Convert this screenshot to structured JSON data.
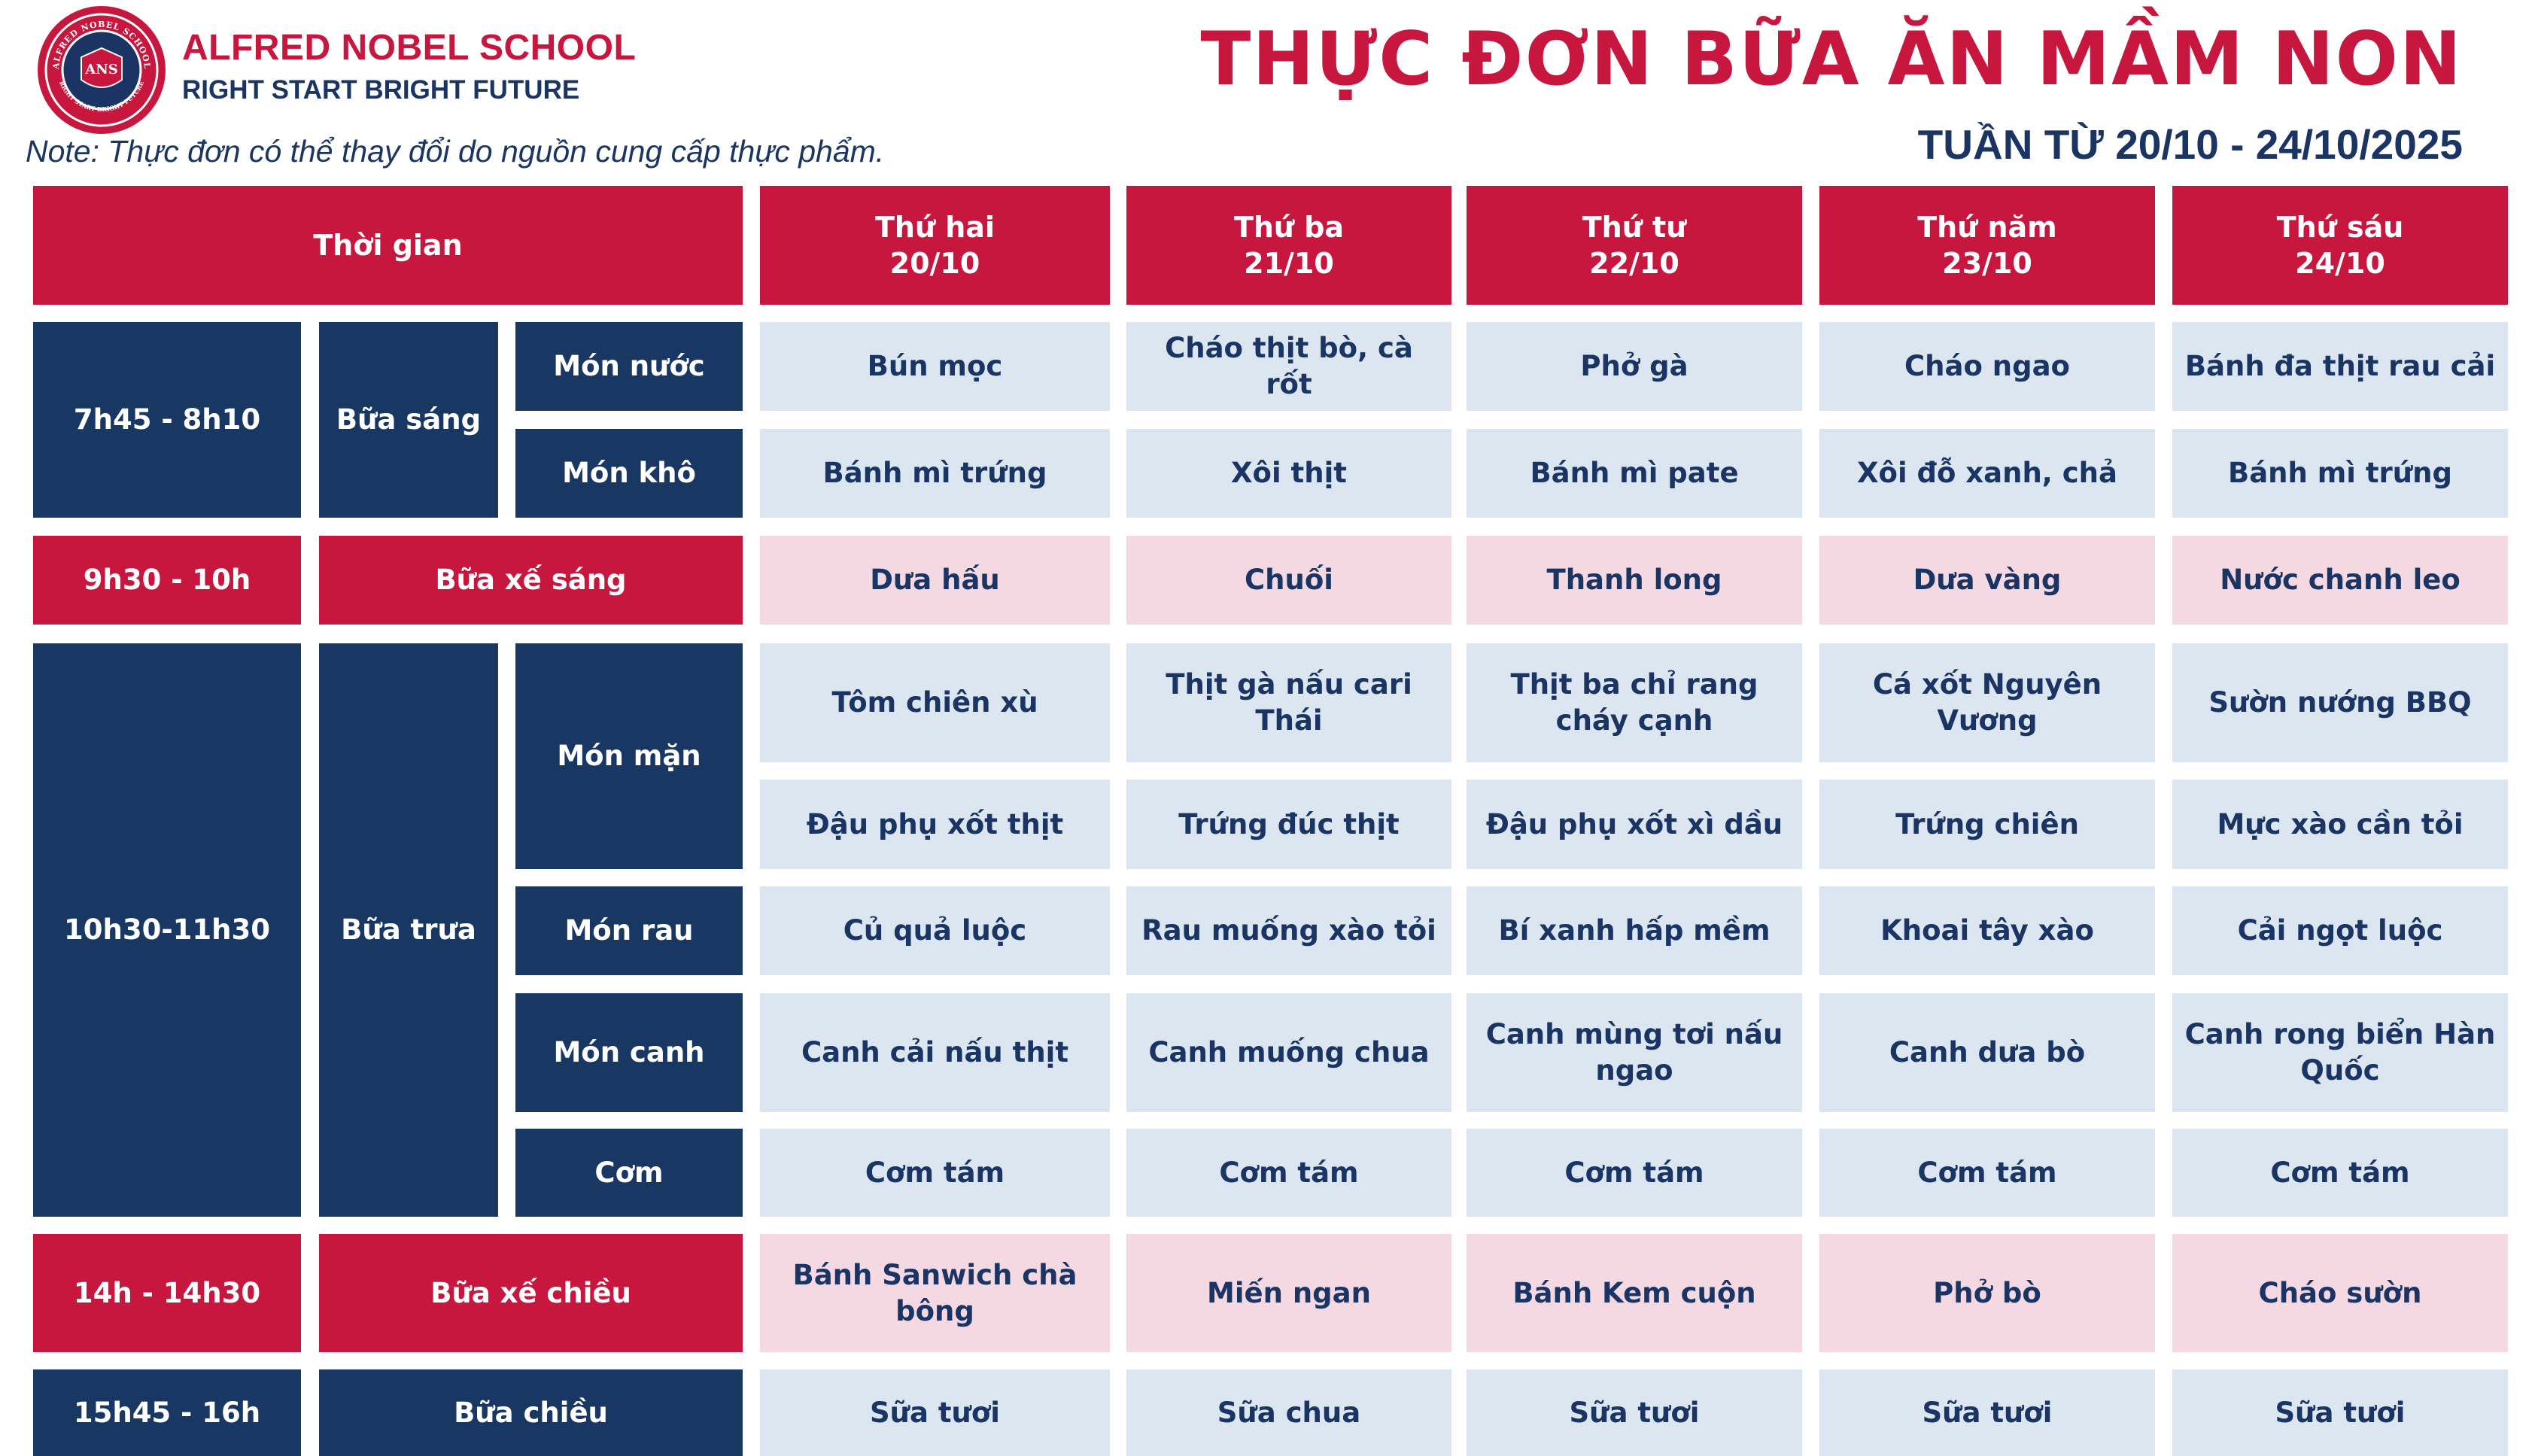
{
  "school": {
    "name": "ALFRED NOBEL SCHOOL",
    "slogan": "RIGHT START  BRIGHT FUTURE",
    "logo_text": "ANS",
    "logo_ring_text": "ALFRED NOBEL SCHOOL",
    "logo_ring_bottom": "RIGHT START BRIGHT FUTURE"
  },
  "note": "Note: Thực đơn có thể thay đổi do nguồn cung cấp thực phẩm.",
  "title": "THỰC ĐƠN BỮA ĂN MẦM NON",
  "week": "TUẦN TỪ 20/10 - 24/10/2025",
  "header": {
    "time": "Thời gian",
    "days": [
      {
        "name": "Thứ hai",
        "date": "20/10"
      },
      {
        "name": "Thứ ba",
        "date": "21/10"
      },
      {
        "name": "Thứ tư",
        "date": "22/10"
      },
      {
        "name": "Thứ năm",
        "date": "23/10"
      },
      {
        "name": "Thứ sáu",
        "date": "24/10"
      }
    ]
  },
  "rows": {
    "mon_nuoc": {
      "time": "7h45 - 8h10",
      "meal": "Bữa sáng",
      "label": "Món nước",
      "dishes": [
        "Bún mọc",
        "Cháo thịt bò, cà rốt",
        "Phở gà",
        "Cháo ngao",
        "Bánh đa thịt rau cải"
      ]
    },
    "mon_kho": {
      "label": "Món khô",
      "dishes": [
        "Bánh mì trứng",
        "Xôi thịt",
        "Bánh mì pate",
        "Xôi đỗ xanh, chả",
        "Bánh mì trứng"
      ]
    },
    "xe_sang": {
      "time": "9h30 - 10h",
      "meal": "Bữa xế sáng",
      "dishes": [
        "Dưa hấu",
        "Chuối",
        "Thanh long",
        "Dưa vàng",
        "Nước chanh leo"
      ]
    },
    "man1": {
      "time": "10h30-11h30",
      "meal": "Bữa trưa",
      "label": "Món mặn",
      "dishes": [
        "Tôm chiên xù",
        "Thịt gà nấu cari Thái",
        "Thịt ba chỉ rang cháy cạnh",
        "Cá xốt Nguyên Vương",
        "Sườn nướng BBQ"
      ]
    },
    "man2": {
      "dishes": [
        "Đậu phụ xốt thịt",
        "Trứng đúc thịt",
        "Đậu phụ xốt xì dầu",
        "Trứng chiên",
        "Mực xào cần tỏi"
      ]
    },
    "rau": {
      "label": "Món rau",
      "dishes": [
        "Củ quả luộc",
        "Rau muống xào tỏi",
        "Bí xanh hấp mềm",
        "Khoai tây xào",
        "Cải ngọt luộc"
      ]
    },
    "canh": {
      "label": "Món canh",
      "dishes": [
        "Canh cải nấu thịt",
        "Canh muống chua",
        "Canh mùng tơi nấu ngao",
        "Canh dưa bò",
        "Canh rong biển Hàn Quốc"
      ]
    },
    "com": {
      "label": "Cơm",
      "dishes": [
        "Cơm tám",
        "Cơm tám",
        "Cơm tám",
        "Cơm tám",
        "Cơm tám"
      ]
    },
    "xe_chieu": {
      "time": "14h - 14h30",
      "meal": "Bữa xế chiều",
      "dishes": [
        "Bánh Sanwich chà bông",
        "Miến ngan",
        "Bánh Kem cuộn",
        "Phở bò",
        "Cháo sườn"
      ]
    },
    "chieu": {
      "time": "15h45 - 16h",
      "meal": "Bữa chiều",
      "dishes": [
        "Sữa tươi",
        "Sữa chua",
        "Sữa tươi",
        "Sữa tươi",
        "Sữa tươi"
      ]
    }
  },
  "colors": {
    "red": "#c8173f",
    "navy": "#183763",
    "light_blue": "#dce6f0",
    "light_pink": "#f5d9e2"
  }
}
